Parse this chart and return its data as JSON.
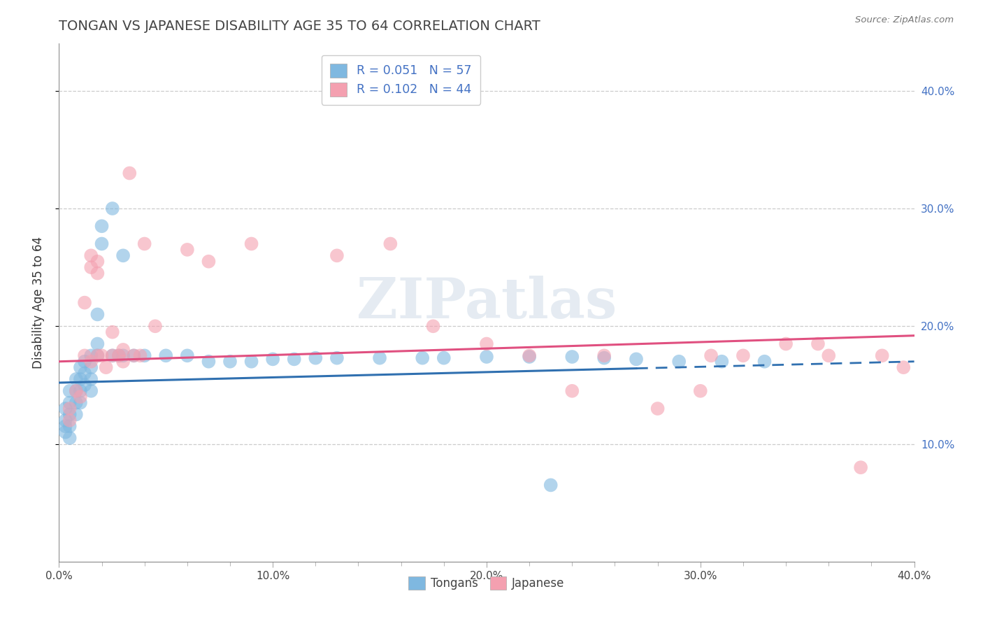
{
  "title": "TONGAN VS JAPANESE DISABILITY AGE 35 TO 64 CORRELATION CHART",
  "source_text": "Source: ZipAtlas.com",
  "ylabel": "Disability Age 35 to 64",
  "xlim": [
    0.0,
    0.4
  ],
  "ylim": [
    0.0,
    0.44
  ],
  "x_tick_labels": [
    "0.0%",
    "",
    "",
    "",
    "",
    "10.0%",
    "",
    "",
    "",
    "",
    "20.0%",
    "",
    "",
    "",
    "",
    "30.0%",
    "",
    "",
    "",
    "",
    "40.0%"
  ],
  "x_tick_vals": [
    0.0,
    0.02,
    0.04,
    0.06,
    0.08,
    0.1,
    0.12,
    0.14,
    0.16,
    0.18,
    0.2,
    0.22,
    0.24,
    0.26,
    0.28,
    0.3,
    0.32,
    0.34,
    0.36,
    0.38,
    0.4
  ],
  "x_label_vals": [
    0.0,
    0.1,
    0.2,
    0.3,
    0.4
  ],
  "x_label_texts": [
    "0.0%",
    "10.0%",
    "20.0%",
    "30.0%",
    "40.0%"
  ],
  "y_tick_vals": [
    0.1,
    0.2,
    0.3,
    0.4
  ],
  "y_tick_labels": [
    "10.0%",
    "20.0%",
    "30.0%",
    "40.0%"
  ],
  "legend_bottom_labels": [
    "Tongans",
    "Japanese"
  ],
  "tongan_R": "0.051",
  "tongan_N": "57",
  "japanese_R": "0.102",
  "japanese_N": "44",
  "tongan_color": "#7fb8e0",
  "japanese_color": "#f4a0b0",
  "tongan_line_color": "#3070b0",
  "japanese_line_color": "#e05080",
  "background_color": "#ffffff",
  "watermark": "ZIPatlas",
  "tongan_line_solid_end": 0.27,
  "tongan_line_dash_start": 0.27,
  "tongan_line_end": 0.4,
  "tongan_scatter": [
    [
      0.003,
      0.13
    ],
    [
      0.003,
      0.12
    ],
    [
      0.003,
      0.115
    ],
    [
      0.003,
      0.11
    ],
    [
      0.005,
      0.145
    ],
    [
      0.005,
      0.135
    ],
    [
      0.005,
      0.125
    ],
    [
      0.005,
      0.115
    ],
    [
      0.005,
      0.105
    ],
    [
      0.008,
      0.155
    ],
    [
      0.008,
      0.145
    ],
    [
      0.008,
      0.135
    ],
    [
      0.008,
      0.125
    ],
    [
      0.01,
      0.165
    ],
    [
      0.01,
      0.155
    ],
    [
      0.01,
      0.145
    ],
    [
      0.01,
      0.135
    ],
    [
      0.012,
      0.17
    ],
    [
      0.012,
      0.16
    ],
    [
      0.012,
      0.15
    ],
    [
      0.015,
      0.175
    ],
    [
      0.015,
      0.165
    ],
    [
      0.015,
      0.155
    ],
    [
      0.015,
      0.145
    ],
    [
      0.018,
      0.21
    ],
    [
      0.018,
      0.185
    ],
    [
      0.018,
      0.175
    ],
    [
      0.02,
      0.285
    ],
    [
      0.02,
      0.27
    ],
    [
      0.025,
      0.3
    ],
    [
      0.025,
      0.175
    ],
    [
      0.028,
      0.175
    ],
    [
      0.03,
      0.26
    ],
    [
      0.03,
      0.175
    ],
    [
      0.035,
      0.175
    ],
    [
      0.04,
      0.175
    ],
    [
      0.05,
      0.175
    ],
    [
      0.06,
      0.175
    ],
    [
      0.07,
      0.17
    ],
    [
      0.08,
      0.17
    ],
    [
      0.09,
      0.17
    ],
    [
      0.1,
      0.172
    ],
    [
      0.11,
      0.172
    ],
    [
      0.12,
      0.173
    ],
    [
      0.13,
      0.173
    ],
    [
      0.15,
      0.173
    ],
    [
      0.17,
      0.173
    ],
    [
      0.18,
      0.173
    ],
    [
      0.2,
      0.174
    ],
    [
      0.22,
      0.174
    ],
    [
      0.24,
      0.174
    ],
    [
      0.255,
      0.173
    ],
    [
      0.27,
      0.172
    ],
    [
      0.23,
      0.065
    ],
    [
      0.29,
      0.17
    ],
    [
      0.31,
      0.17
    ],
    [
      0.33,
      0.17
    ]
  ],
  "japanese_scatter": [
    [
      0.005,
      0.13
    ],
    [
      0.005,
      0.12
    ],
    [
      0.008,
      0.145
    ],
    [
      0.01,
      0.14
    ],
    [
      0.012,
      0.22
    ],
    [
      0.012,
      0.175
    ],
    [
      0.015,
      0.26
    ],
    [
      0.015,
      0.25
    ],
    [
      0.015,
      0.17
    ],
    [
      0.018,
      0.255
    ],
    [
      0.018,
      0.245
    ],
    [
      0.018,
      0.175
    ],
    [
      0.02,
      0.175
    ],
    [
      0.022,
      0.165
    ],
    [
      0.025,
      0.195
    ],
    [
      0.025,
      0.175
    ],
    [
      0.028,
      0.175
    ],
    [
      0.03,
      0.18
    ],
    [
      0.03,
      0.17
    ],
    [
      0.033,
      0.33
    ],
    [
      0.035,
      0.175
    ],
    [
      0.038,
      0.175
    ],
    [
      0.04,
      0.27
    ],
    [
      0.045,
      0.2
    ],
    [
      0.06,
      0.265
    ],
    [
      0.07,
      0.255
    ],
    [
      0.09,
      0.27
    ],
    [
      0.13,
      0.26
    ],
    [
      0.155,
      0.27
    ],
    [
      0.175,
      0.2
    ],
    [
      0.2,
      0.185
    ],
    [
      0.22,
      0.175
    ],
    [
      0.24,
      0.145
    ],
    [
      0.255,
      0.175
    ],
    [
      0.28,
      0.13
    ],
    [
      0.3,
      0.145
    ],
    [
      0.305,
      0.175
    ],
    [
      0.32,
      0.175
    ],
    [
      0.34,
      0.185
    ],
    [
      0.355,
      0.185
    ],
    [
      0.36,
      0.175
    ],
    [
      0.375,
      0.08
    ],
    [
      0.385,
      0.175
    ],
    [
      0.395,
      0.165
    ]
  ]
}
